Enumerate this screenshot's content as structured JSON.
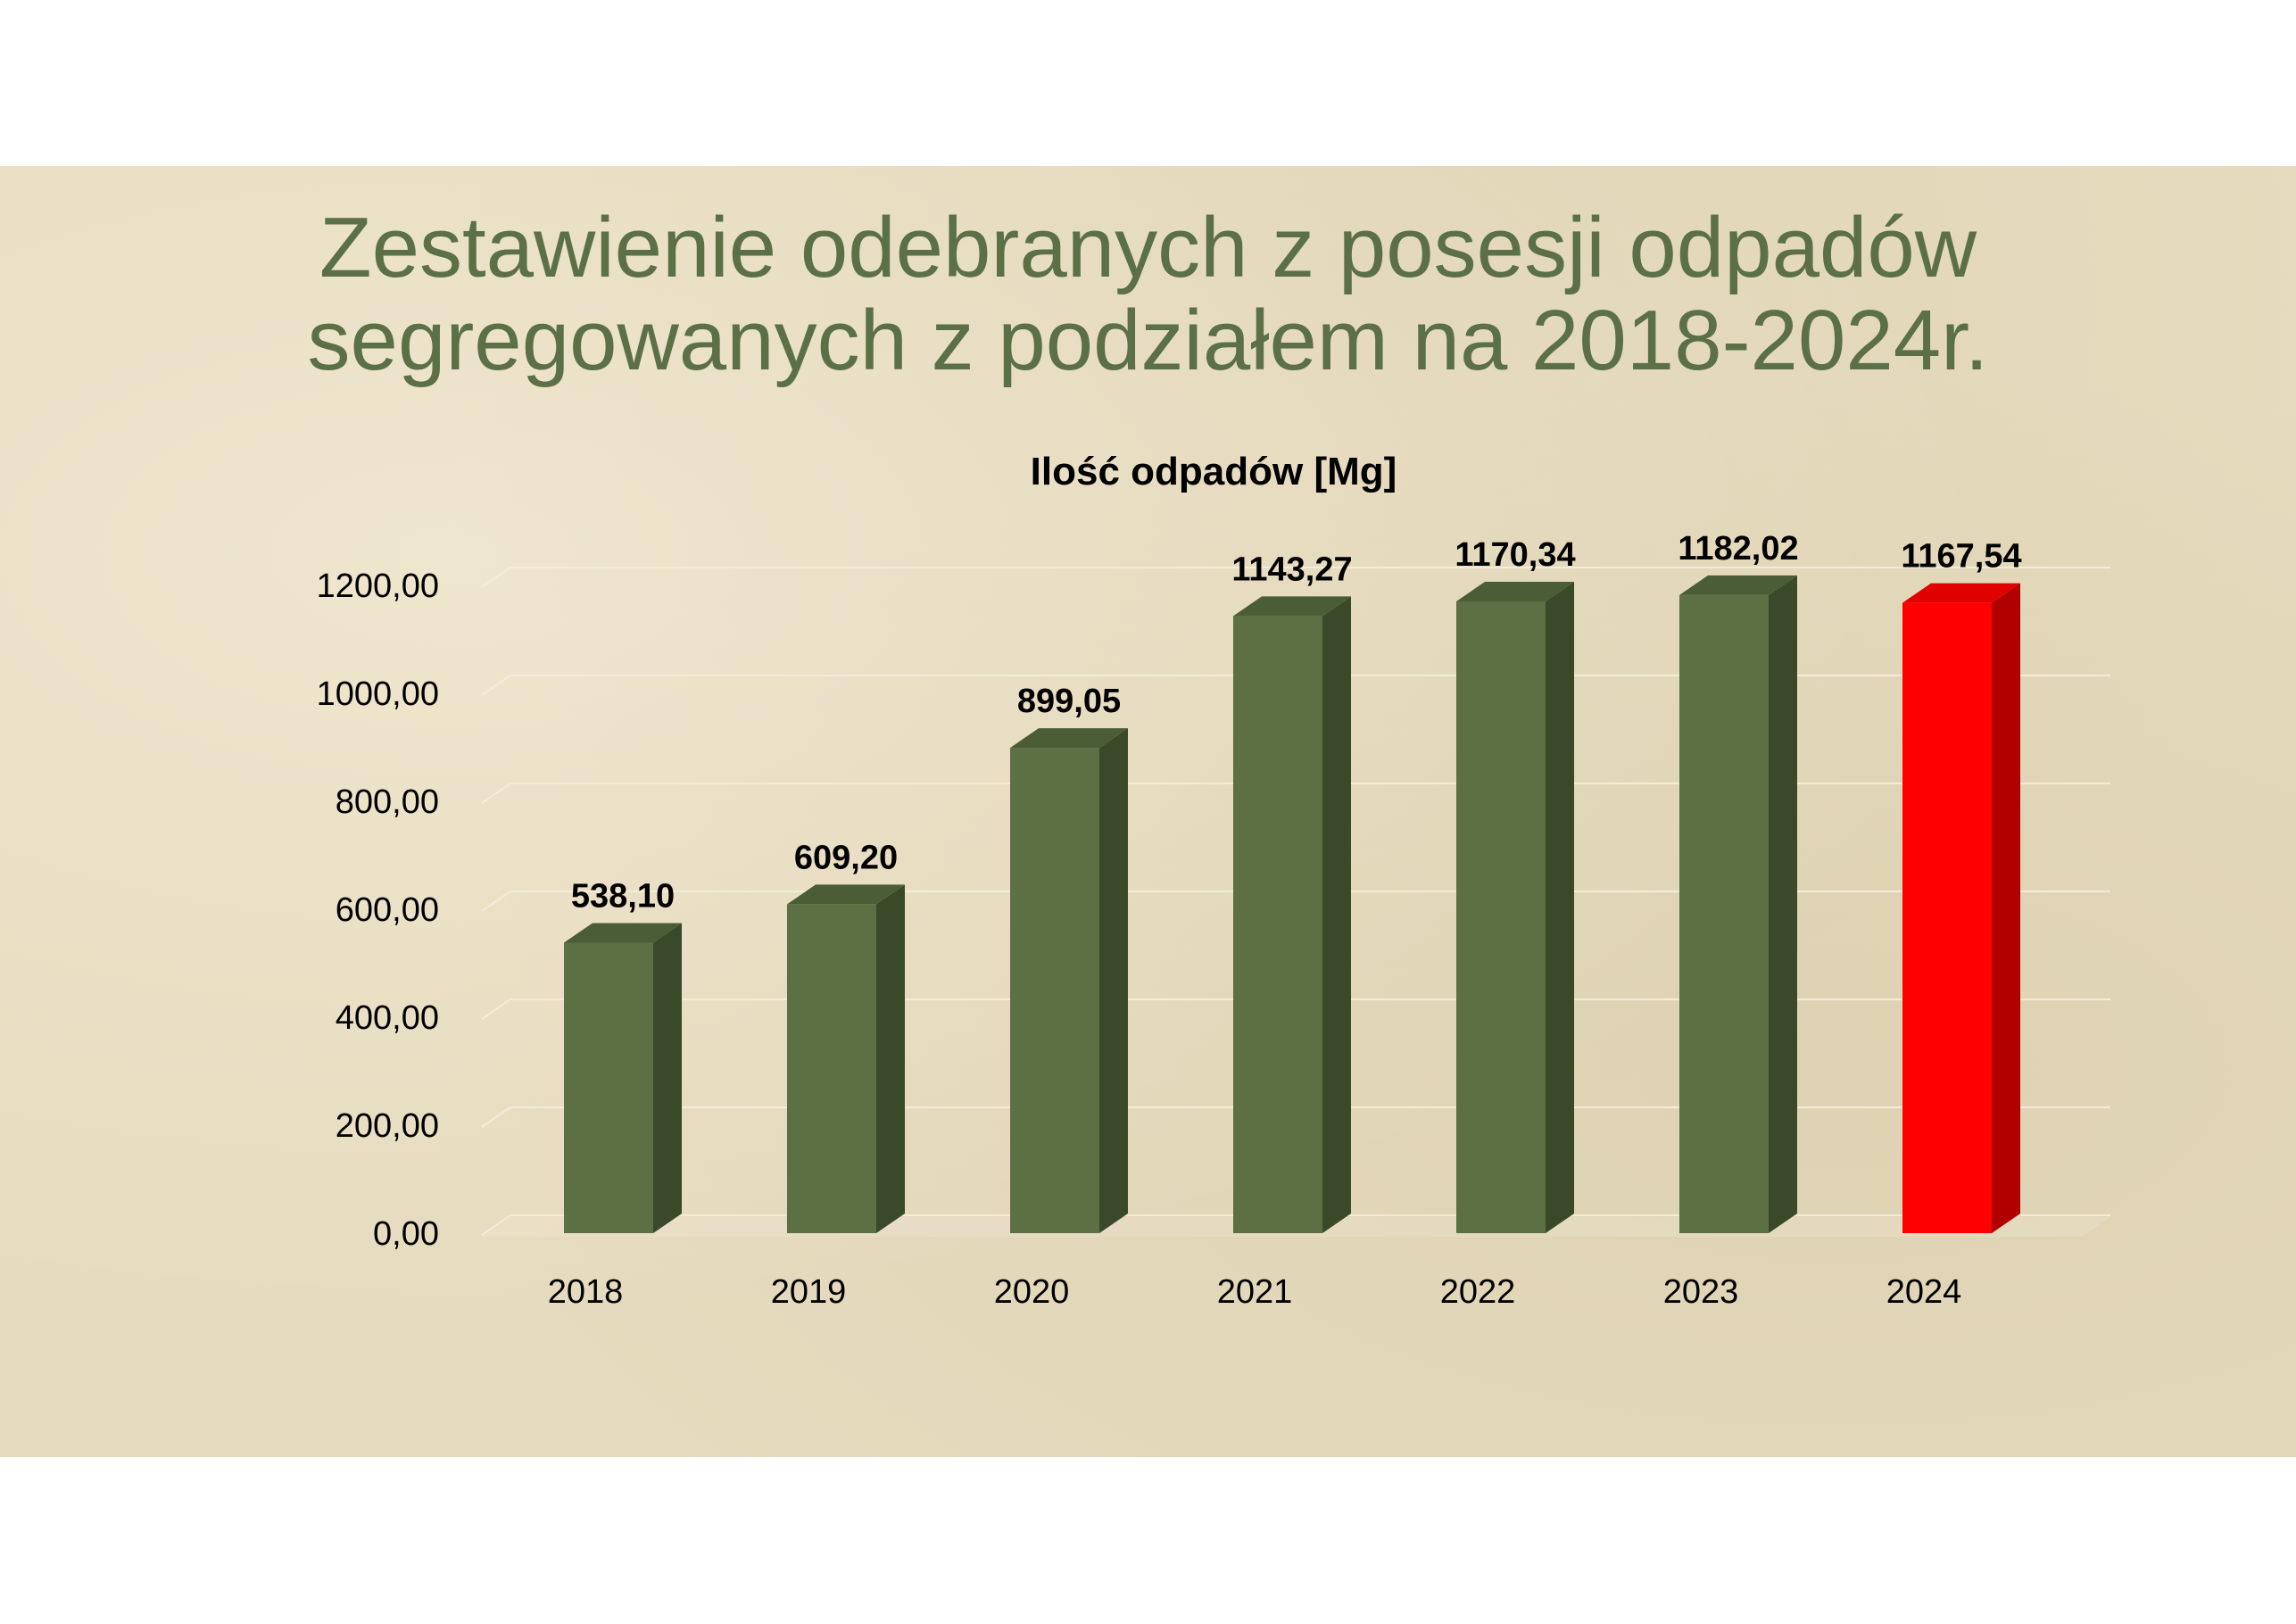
{
  "slide": {
    "title_lines": [
      "Zestawienie odebranych z posesji odpadów",
      "segregowanych z podziałem na 2018-2024r."
    ]
  },
  "chart_data": {
    "type": "bar",
    "title": "Ilość odpadów [Mg]",
    "categories": [
      "2018",
      "2019",
      "2020",
      "2021",
      "2022",
      "2023",
      "2024"
    ],
    "series": [
      {
        "values": [
          538.1,
          609.2,
          899.05,
          1143.27,
          1170.34,
          1182.02,
          1167.54
        ],
        "data_labels": [
          "538,10",
          "609,20",
          "899,05",
          "1143,27",
          "1170,34",
          "1182,02",
          "1167,54"
        ]
      }
    ],
    "ylim": [
      0,
      1200
    ],
    "yticks": [
      "0,00",
      "200,00",
      "400,00",
      "600,00",
      "800,00",
      "1000,00",
      "1200,00"
    ],
    "grid": true,
    "legend": "none",
    "colors": {
      "bar_front": "#5c7044",
      "bar_side": "#3a4a29",
      "bar_top": "#4b5d36",
      "highlight_front": "#ff0000",
      "highlight_side": "#b00000",
      "highlight_top": "#e00000",
      "gridline": "#f2ecdb",
      "text": "#000000"
    },
    "highlight_category": "2024"
  }
}
